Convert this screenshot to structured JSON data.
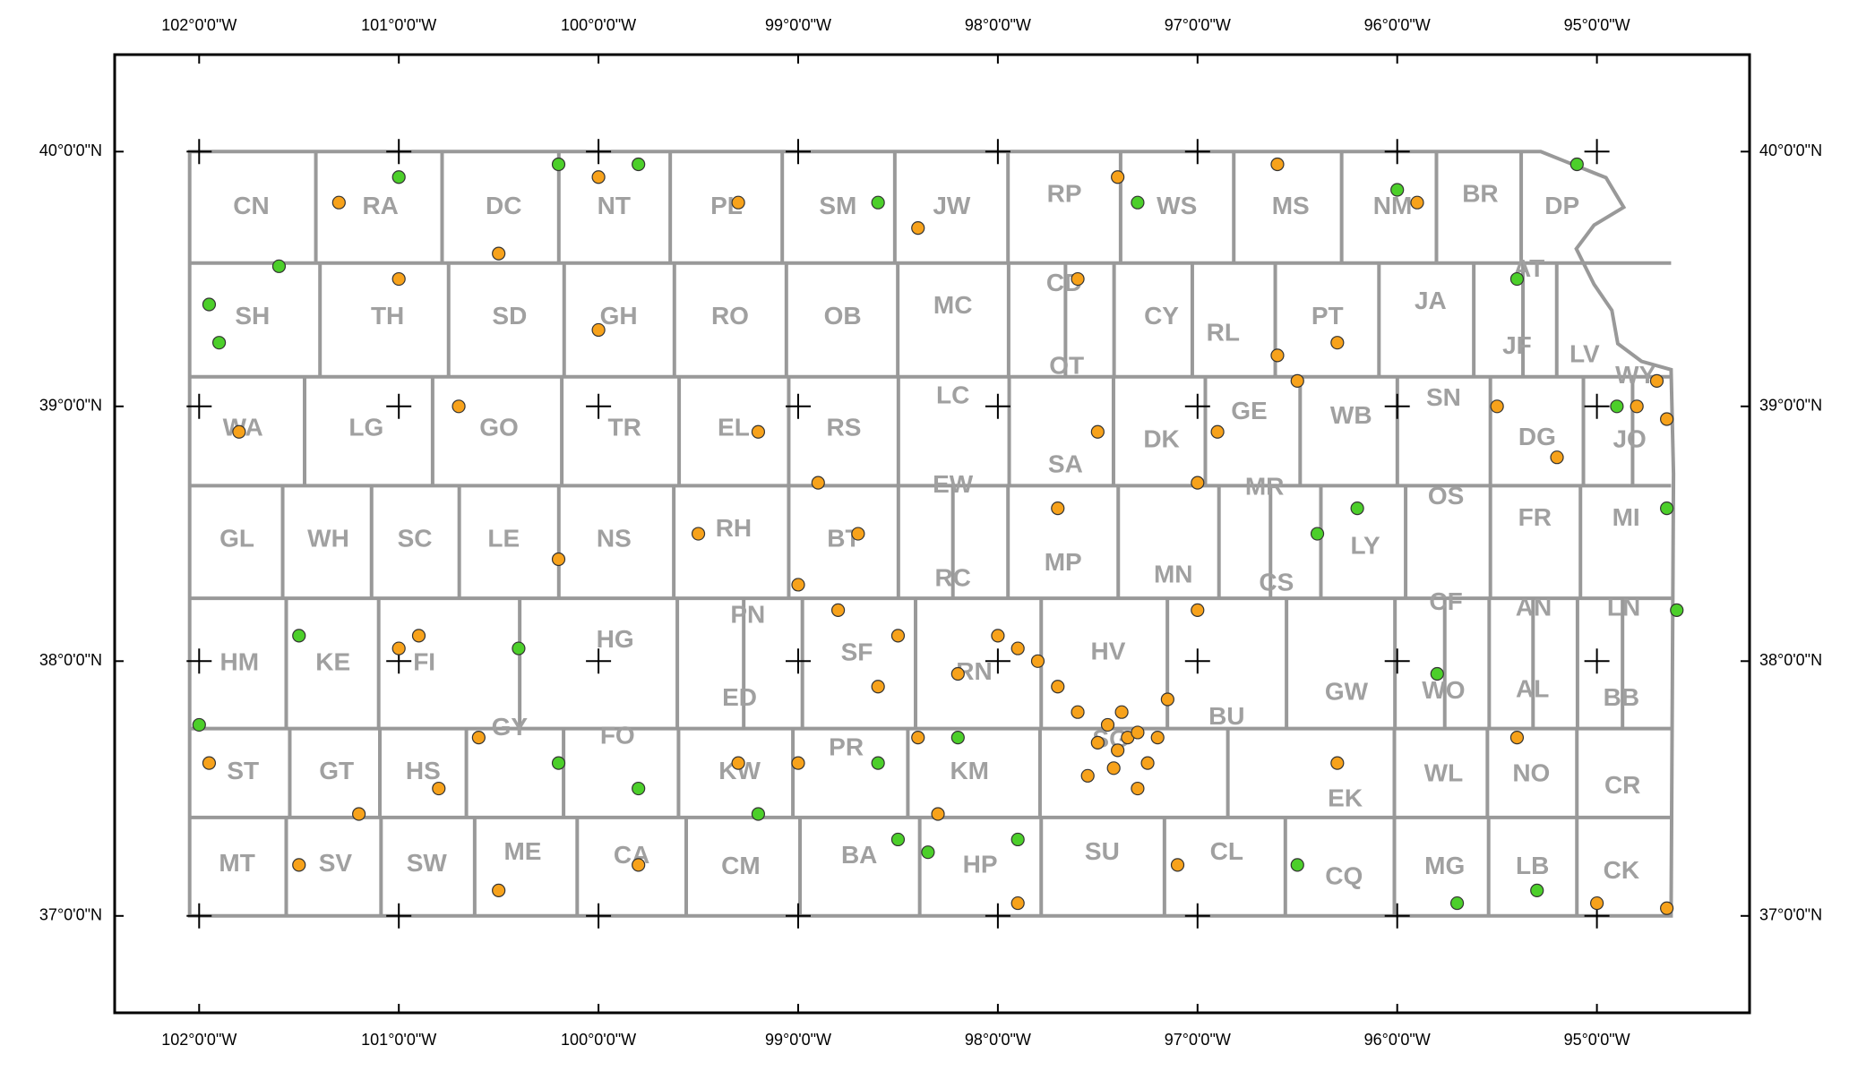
{
  "map": {
    "xticks": [
      {
        "value": -102,
        "label": "102°0'0\"W"
      },
      {
        "value": -101,
        "label": "101°0'0\"W"
      },
      {
        "value": -100,
        "label": "100°0'0\"W"
      },
      {
        "value": -99,
        "label": "99°0'0\"W"
      },
      {
        "value": -98,
        "label": "98°0'0\"W"
      },
      {
        "value": -97,
        "label": "97°0'0\"W"
      },
      {
        "value": -96,
        "label": "96°0'0\"W"
      },
      {
        "value": -95,
        "label": "95°0'0\"W"
      }
    ],
    "yticks": [
      {
        "value": 40,
        "label": "40°0'0\"N"
      },
      {
        "value": 39,
        "label": "39°0'0\"N"
      },
      {
        "value": 38,
        "label": "38°0'0\"N"
      },
      {
        "value": 37,
        "label": "37°0'0\"N"
      }
    ],
    "counties": [
      "CN",
      "RA",
      "DC",
      "NT",
      "PL",
      "SM",
      "JW",
      "RP",
      "WS",
      "MS",
      "NM",
      "BR",
      "DP",
      "SH",
      "TH",
      "SD",
      "GH",
      "RO",
      "OB",
      "MC",
      "CD",
      "CY",
      "RL",
      "PT",
      "JA",
      "AT",
      "JF",
      "LV",
      "WA",
      "LG",
      "GO",
      "TR",
      "EL",
      "RS",
      "LC",
      "OT",
      "DK",
      "GE",
      "WB",
      "SN",
      "WY",
      "DG",
      "JO",
      "GL",
      "WH",
      "SC",
      "LE",
      "NS",
      "RH",
      "BT",
      "EW",
      "SA",
      "MR",
      "OS",
      "FR",
      "MI",
      "MP",
      "MN",
      "CS",
      "LY",
      "RC",
      "PN",
      "HG",
      "CF",
      "AN",
      "LN",
      "HM",
      "KE",
      "FI",
      "HV",
      "SF",
      "RN",
      "GW",
      "WO",
      "AL",
      "BB",
      "ED",
      "GY",
      "FO",
      "BU",
      "SG",
      "ST",
      "GT",
      "HS",
      "KW",
      "PR",
      "KM",
      "EK",
      "WL",
      "NO",
      "CR",
      "MT",
      "SV",
      "SW",
      "ME",
      "CA",
      "CM",
      "BA",
      "HP",
      "SU",
      "CL",
      "CQ",
      "MG",
      "LB",
      "CK"
    ],
    "series": [
      {
        "color": "#f7a21b",
        "lon": [
          -97.35,
          -97.4,
          -97.3,
          -97.45,
          -97.25,
          -97.5,
          -97.38,
          -97.2,
          -97.55,
          -97.3,
          -97.6,
          -97.42,
          -97.15,
          -97.7,
          -97.8,
          -97.9,
          -98.0,
          -98.2,
          -98.4,
          -98.6,
          -98.8,
          -99.0,
          -98.7,
          -98.9,
          -99.2,
          -99.3,
          -98.5,
          -97.6,
          -97.5,
          -97.7,
          -97.0,
          -96.6,
          -96.3,
          -96.5,
          -95.5,
          -95.2,
          -94.7,
          -94.65,
          -94.8,
          -95.9,
          -96.6,
          -97.4,
          -98.4,
          -100.0,
          -100.5,
          -101.0,
          -101.3,
          -100.7,
          -100.9,
          -101.0,
          -100.6,
          -100.8,
          -101.2,
          -101.5,
          -100.5,
          -99.8,
          -99.3,
          -99.0,
          -98.3,
          -97.9,
          -97.1,
          -96.3,
          -95.4,
          -95.0,
          -94.65,
          -100.2,
          -99.5,
          -101.8,
          -101.95,
          -100.0,
          -97.0,
          -96.9
        ],
        "lat": [
          37.7,
          37.65,
          37.72,
          37.75,
          37.6,
          37.68,
          37.8,
          37.7,
          37.55,
          37.5,
          37.8,
          37.58,
          37.85,
          37.9,
          38.0,
          38.05,
          38.1,
          37.95,
          37.7,
          37.9,
          38.2,
          38.3,
          38.5,
          38.7,
          38.9,
          39.8,
          38.1,
          39.5,
          38.9,
          38.6,
          38.7,
          39.2,
          39.25,
          39.1,
          39.0,
          38.8,
          39.1,
          38.95,
          39.0,
          39.8,
          39.95,
          39.9,
          39.7,
          39.9,
          39.6,
          39.5,
          39.8,
          39.0,
          38.1,
          38.05,
          37.7,
          37.5,
          37.4,
          37.2,
          37.1,
          37.2,
          37.6,
          37.6,
          37.4,
          37.05,
          37.2,
          37.6,
          37.7,
          37.05,
          37.03,
          38.4,
          38.5,
          38.9,
          37.6,
          39.3,
          38.2,
          38.9
        ]
      },
      {
        "color": "#4ccf2a",
        "lon": [
          -101.95,
          -101.9,
          -101.6,
          -101.0,
          -100.2,
          -99.8,
          -98.6,
          -97.3,
          -96.0,
          -95.1,
          -95.4,
          -94.9,
          -94.65,
          -94.6,
          -95.8,
          -96.2,
          -96.4,
          -98.5,
          -98.35,
          -98.6,
          -99.2,
          -99.8,
          -100.2,
          -101.5,
          -100.4,
          -102.0,
          -95.3,
          -95.7,
          -96.5,
          -97.9,
          -98.2
        ],
        "lat": [
          39.4,
          39.25,
          39.55,
          39.9,
          39.95,
          39.95,
          39.8,
          39.8,
          39.85,
          39.95,
          39.5,
          39.0,
          38.6,
          38.2,
          37.95,
          38.6,
          38.5,
          37.3,
          37.25,
          37.6,
          37.4,
          37.5,
          37.6,
          38.1,
          38.05,
          37.75,
          37.1,
          37.05,
          37.2,
          37.3,
          37.7
        ]
      }
    ]
  }
}
